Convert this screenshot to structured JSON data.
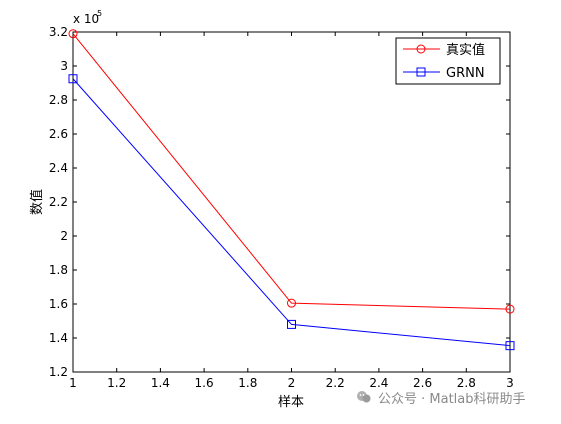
{
  "chart_data": {
    "type": "line",
    "x": [
      1,
      2,
      3
    ],
    "series": [
      {
        "name": "真实值",
        "values": [
          319000,
          160500,
          157000
        ],
        "color": "#ff0000",
        "marker": "circle"
      },
      {
        "name": "GRNN",
        "values": [
          292500,
          148000,
          135500
        ],
        "color": "#0000ff",
        "marker": "square"
      }
    ],
    "xlim": [
      1,
      3
    ],
    "ylim": [
      120000,
      320000
    ],
    "xticks": [
      "1",
      "1.2",
      "1.4",
      "1.6",
      "1.8",
      "2",
      "2.2",
      "2.4",
      "2.6",
      "2.8",
      "3"
    ],
    "yticks": [
      "1.2",
      "1.4",
      "1.6",
      "1.8",
      "2",
      "2.2",
      "2.4",
      "2.6",
      "2.8",
      "3",
      "3.2"
    ],
    "y_exponent_label": "x 10",
    "y_exponent_power": "5",
    "xlabel": "样本",
    "ylabel": "数值",
    "title": "",
    "grid": false,
    "legend_position": "top-right"
  },
  "watermark": {
    "text": "公众号 · Matlab科研助手"
  }
}
